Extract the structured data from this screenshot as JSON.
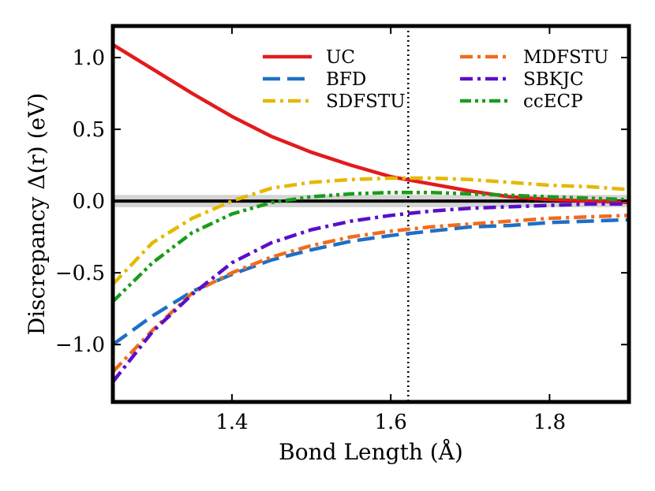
{
  "chart_data": {
    "type": "line",
    "xlabel": "Bond Length (Å)",
    "ylabel": "Discrepancy Δ(r) (eV)",
    "xlim": [
      1.25,
      1.9
    ],
    "ylim": [
      -1.4,
      1.22
    ],
    "xticks": [
      1.4,
      1.6,
      1.8
    ],
    "xtick_labels": [
      "1.4",
      "1.6",
      "1.8"
    ],
    "yticks": [
      1.0,
      0.5,
      0.0,
      -0.5,
      -1.0
    ],
    "ytick_labels": [
      "1.0",
      "0.5",
      "0.0",
      "−0.5",
      "−1.0"
    ],
    "reference_line": {
      "y": 0.0,
      "band": 0.043,
      "color": "#000000",
      "band_color": "#b0b0b0"
    },
    "vline": {
      "x": 1.622,
      "color": "#000000",
      "style": "dotted"
    },
    "grid": false,
    "legend_placement": "top-right",
    "series": [
      {
        "name": "UC",
        "color": "#e31a1c",
        "dash": "solid",
        "x": [
          1.25,
          1.3,
          1.35,
          1.4,
          1.45,
          1.5,
          1.55,
          1.6,
          1.65,
          1.7,
          1.75,
          1.8,
          1.85,
          1.9
        ],
        "y": [
          1.09,
          0.92,
          0.75,
          0.59,
          0.45,
          0.34,
          0.25,
          0.17,
          0.12,
          0.07,
          0.03,
          0.01,
          0.0,
          -0.01
        ]
      },
      {
        "name": "BFD",
        "color": "#1f6fc5",
        "dash": "long",
        "x": [
          1.25,
          1.3,
          1.35,
          1.4,
          1.45,
          1.5,
          1.55,
          1.6,
          1.65,
          1.7,
          1.75,
          1.8,
          1.85,
          1.9
        ],
        "y": [
          -1.0,
          -0.8,
          -0.63,
          -0.51,
          -0.41,
          -0.34,
          -0.28,
          -0.24,
          -0.21,
          -0.18,
          -0.17,
          -0.15,
          -0.14,
          -0.13
        ]
      },
      {
        "name": "SDFSTU",
        "color": "#e6b800",
        "dash": "dashdot",
        "x": [
          1.25,
          1.3,
          1.35,
          1.4,
          1.45,
          1.5,
          1.55,
          1.6,
          1.65,
          1.7,
          1.75,
          1.8,
          1.85,
          1.9
        ],
        "y": [
          -0.58,
          -0.29,
          -0.12,
          0.0,
          0.09,
          0.13,
          0.15,
          0.16,
          0.16,
          0.15,
          0.13,
          0.11,
          0.1,
          0.08
        ]
      },
      {
        "name": "MDFSTU",
        "color": "#f26b1d",
        "dash": "dashdot",
        "x": [
          1.25,
          1.3,
          1.35,
          1.4,
          1.45,
          1.5,
          1.55,
          1.6,
          1.65,
          1.7,
          1.75,
          1.8,
          1.85,
          1.9
        ],
        "y": [
          -1.19,
          -0.9,
          -0.64,
          -0.5,
          -0.39,
          -0.31,
          -0.25,
          -0.21,
          -0.18,
          -0.16,
          -0.14,
          -0.12,
          -0.11,
          -0.1
        ]
      },
      {
        "name": "SBKJC",
        "color": "#5a0fc8",
        "dash": "dashdot",
        "x": [
          1.25,
          1.3,
          1.35,
          1.4,
          1.45,
          1.5,
          1.55,
          1.6,
          1.65,
          1.7,
          1.75,
          1.8,
          1.85,
          1.9
        ],
        "y": [
          -1.26,
          -0.91,
          -0.65,
          -0.43,
          -0.29,
          -0.2,
          -0.14,
          -0.1,
          -0.07,
          -0.05,
          -0.04,
          -0.03,
          -0.02,
          -0.02
        ]
      },
      {
        "name": "ccECP",
        "color": "#1a9c1a",
        "dash": "dashdotdot",
        "x": [
          1.25,
          1.3,
          1.35,
          1.4,
          1.45,
          1.5,
          1.55,
          1.6,
          1.65,
          1.7,
          1.75,
          1.8,
          1.85,
          1.9
        ],
        "y": [
          -0.7,
          -0.43,
          -0.22,
          -0.09,
          -0.01,
          0.03,
          0.05,
          0.06,
          0.06,
          0.05,
          0.04,
          0.03,
          0.02,
          0.01
        ]
      }
    ],
    "legend_columns": [
      [
        "UC",
        "BFD",
        "SDFSTU"
      ],
      [
        "MDFSTU",
        "SBKJC",
        "ccECP"
      ]
    ]
  }
}
